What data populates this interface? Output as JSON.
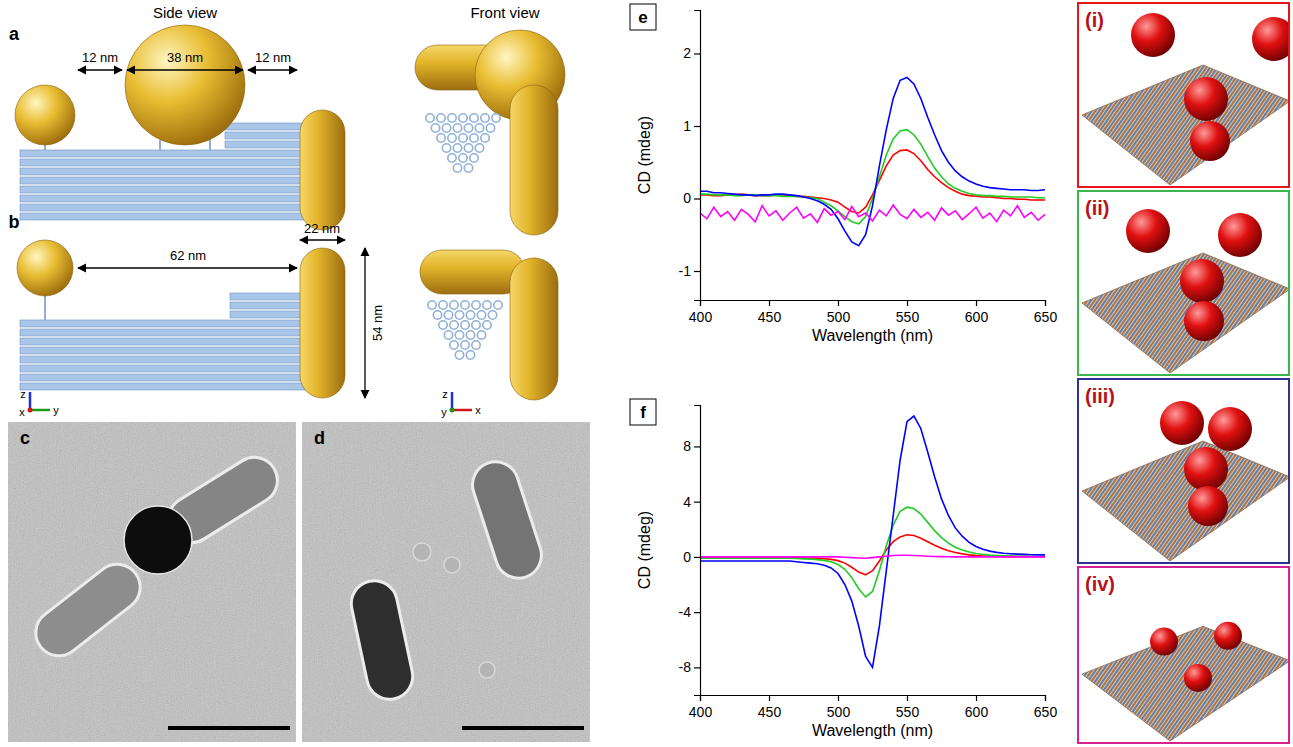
{
  "figure": {
    "a": {
      "label": "a",
      "side_view": "Side view",
      "front_view": "Front view",
      "gap_left": "12 nm",
      "sphere_diameter": "38 nm",
      "gap_right": "12 nm"
    },
    "b": {
      "label": "b",
      "gap": "62 nm",
      "rod_width": "22 nm",
      "rod_length": "54 nm",
      "side_axes": [
        "z",
        "y",
        "x"
      ],
      "front_axes": [
        "z",
        "x",
        "y"
      ]
    },
    "c": {
      "label": "c"
    },
    "d": {
      "label": "d"
    },
    "models": [
      {
        "label": "(i)",
        "color": "#e8141c"
      },
      {
        "label": "(ii)",
        "color": "#3cb54a"
      },
      {
        "label": "(iii)",
        "color": "#2e3192"
      },
      {
        "label": "(iv)",
        "color": "#d6228f"
      }
    ]
  },
  "chart_data": [
    {
      "type": "line",
      "title": "e",
      "xlabel": "Wavelength (nm)",
      "ylabel": "CD (mdeg)",
      "x": [
        400,
        405,
        410,
        415,
        420,
        425,
        430,
        435,
        440,
        445,
        450,
        455,
        460,
        465,
        470,
        475,
        480,
        485,
        490,
        495,
        500,
        505,
        510,
        515,
        520,
        525,
        530,
        535,
        540,
        545,
        550,
        555,
        560,
        565,
        570,
        575,
        580,
        585,
        590,
        595,
        600,
        605,
        610,
        615,
        620,
        625,
        630,
        635,
        640,
        645,
        650
      ],
      "xlim": [
        400,
        650
      ],
      "xticks": [
        400,
        450,
        500,
        550,
        600,
        650
      ],
      "ylim": [
        -1.4,
        2.6
      ],
      "yticks": [
        -1,
        0,
        1,
        2
      ],
      "series": [
        {
          "color": "#ff0000",
          "values": [
            0.05,
            0.05,
            0.04,
            0.04,
            0.05,
            0.05,
            0.06,
            0.05,
            0.04,
            0.04,
            0.04,
            0.05,
            0.05,
            0.04,
            0.03,
            0.03,
            0.02,
            0.01,
            0.0,
            -0.02,
            -0.05,
            -0.12,
            -0.18,
            -0.2,
            -0.12,
            0.05,
            0.25,
            0.45,
            0.6,
            0.66,
            0.67,
            0.62,
            0.52,
            0.4,
            0.3,
            0.22,
            0.15,
            0.1,
            0.06,
            0.04,
            0.03,
            0.02,
            0.02,
            0.01,
            0.0,
            0.0,
            -0.01,
            -0.01,
            -0.02,
            -0.02,
            -0.02
          ]
        },
        {
          "color": "#22cc22",
          "values": [
            0.06,
            0.06,
            0.05,
            0.05,
            0.05,
            0.04,
            0.04,
            0.05,
            0.05,
            0.04,
            0.04,
            0.04,
            0.03,
            0.03,
            0.03,
            0.02,
            0.01,
            0.0,
            -0.05,
            -0.1,
            -0.17,
            -0.25,
            -0.32,
            -0.35,
            -0.25,
            0.0,
            0.3,
            0.6,
            0.82,
            0.93,
            0.95,
            0.88,
            0.75,
            0.58,
            0.42,
            0.3,
            0.2,
            0.14,
            0.1,
            0.07,
            0.05,
            0.04,
            0.04,
            0.03,
            0.03,
            0.02,
            0.02,
            0.02,
            0.02,
            0.01,
            0.01
          ]
        },
        {
          "color": "#0000ff",
          "values": [
            0.1,
            0.1,
            0.08,
            0.08,
            0.07,
            0.06,
            0.05,
            0.05,
            0.04,
            0.05,
            0.05,
            0.06,
            0.06,
            0.05,
            0.04,
            0.02,
            0.0,
            -0.03,
            -0.08,
            -0.15,
            -0.28,
            -0.45,
            -0.6,
            -0.65,
            -0.5,
            -0.1,
            0.45,
            0.95,
            1.38,
            1.63,
            1.67,
            1.58,
            1.38,
            1.12,
            0.88,
            0.66,
            0.5,
            0.38,
            0.3,
            0.24,
            0.2,
            0.17,
            0.15,
            0.14,
            0.13,
            0.12,
            0.12,
            0.12,
            0.11,
            0.11,
            0.12
          ]
        },
        {
          "color": "#ff00ff",
          "values": [
            -0.2,
            -0.28,
            -0.12,
            -0.25,
            -0.18,
            -0.3,
            -0.15,
            -0.22,
            -0.32,
            -0.1,
            -0.24,
            -0.17,
            -0.3,
            -0.2,
            -0.12,
            -0.27,
            -0.21,
            -0.33,
            -0.14,
            -0.23,
            -0.18,
            -0.29,
            -0.11,
            -0.25,
            -0.2,
            -0.31,
            -0.16,
            -0.24,
            -0.09,
            -0.22,
            -0.28,
            -0.15,
            -0.26,
            -0.19,
            -0.3,
            -0.13,
            -0.23,
            -0.17,
            -0.29,
            -0.21,
            -0.12,
            -0.27,
            -0.2,
            -0.32,
            -0.16,
            -0.24,
            -0.1,
            -0.26,
            -0.19,
            -0.3,
            -0.22
          ]
        }
      ]
    },
    {
      "type": "line",
      "title": "f",
      "xlabel": "Wavelength (nm)",
      "ylabel": "CD (mdeg)",
      "x": [
        400,
        405,
        410,
        415,
        420,
        425,
        430,
        435,
        440,
        445,
        450,
        455,
        460,
        465,
        470,
        475,
        480,
        485,
        490,
        495,
        500,
        505,
        510,
        515,
        520,
        525,
        530,
        535,
        540,
        545,
        550,
        555,
        560,
        565,
        570,
        575,
        580,
        585,
        590,
        595,
        600,
        605,
        610,
        615,
        620,
        625,
        630,
        635,
        640,
        645,
        650
      ],
      "xlim": [
        400,
        650
      ],
      "xticks": [
        400,
        450,
        500,
        550,
        600,
        650
      ],
      "ylim": [
        -10,
        11
      ],
      "yticks": [
        -8,
        -4,
        0,
        4,
        8
      ],
      "series": [
        {
          "color": "#ff0000",
          "values": [
            -0.05,
            -0.05,
            -0.05,
            -0.05,
            -0.05,
            -0.05,
            -0.05,
            -0.05,
            -0.05,
            -0.05,
            -0.05,
            -0.05,
            -0.05,
            -0.05,
            -0.06,
            -0.07,
            -0.08,
            -0.1,
            -0.13,
            -0.18,
            -0.27,
            -0.45,
            -0.75,
            -1.1,
            -1.3,
            -1.0,
            -0.3,
            0.5,
            1.1,
            1.45,
            1.6,
            1.55,
            1.35,
            1.1,
            0.85,
            0.62,
            0.45,
            0.32,
            0.22,
            0.15,
            0.1,
            0.07,
            0.05,
            0.04,
            0.03,
            0.02,
            0.02,
            0.02,
            0.01,
            0.01,
            0.01
          ]
        },
        {
          "color": "#22cc22",
          "values": [
            -0.1,
            -0.1,
            -0.1,
            -0.1,
            -0.1,
            -0.1,
            -0.1,
            -0.1,
            -0.1,
            -0.1,
            -0.1,
            -0.1,
            -0.1,
            -0.1,
            -0.12,
            -0.14,
            -0.16,
            -0.2,
            -0.25,
            -0.35,
            -0.55,
            -0.9,
            -1.5,
            -2.3,
            -2.9,
            -2.5,
            -1.0,
            0.8,
            2.3,
            3.3,
            3.6,
            3.5,
            3.1,
            2.5,
            1.9,
            1.4,
            1.0,
            0.7,
            0.5,
            0.35,
            0.25,
            0.18,
            0.13,
            0.1,
            0.08,
            0.06,
            0.05,
            0.04,
            0.03,
            0.03,
            0.03
          ]
        },
        {
          "color": "#0000ff",
          "values": [
            -0.3,
            -0.3,
            -0.3,
            -0.3,
            -0.3,
            -0.3,
            -0.3,
            -0.3,
            -0.3,
            -0.3,
            -0.3,
            -0.3,
            -0.3,
            -0.3,
            -0.35,
            -0.4,
            -0.45,
            -0.5,
            -0.6,
            -0.8,
            -1.2,
            -2.0,
            -3.2,
            -5.0,
            -7.2,
            -8.0,
            -5.0,
            -1.0,
            3.0,
            7.0,
            9.8,
            10.2,
            9.3,
            7.6,
            5.8,
            4.2,
            3.0,
            2.1,
            1.5,
            1.05,
            0.75,
            0.55,
            0.42,
            0.33,
            0.27,
            0.23,
            0.2,
            0.18,
            0.16,
            0.15,
            0.15
          ]
        },
        {
          "color": "#ff00ff",
          "values": [
            0,
            0,
            0,
            0,
            0,
            0,
            0,
            0,
            0,
            0,
            0,
            0,
            0,
            0,
            0,
            0,
            0,
            0,
            0,
            0,
            0,
            -0.02,
            -0.05,
            -0.08,
            -0.1,
            -0.05,
            0,
            0.05,
            0.1,
            0.12,
            0.12,
            0.1,
            0.08,
            0.05,
            0.03,
            0.02,
            0.01,
            0,
            0,
            0,
            0,
            0,
            0,
            0,
            0,
            0,
            0,
            0,
            0,
            0,
            0
          ]
        }
      ]
    }
  ]
}
